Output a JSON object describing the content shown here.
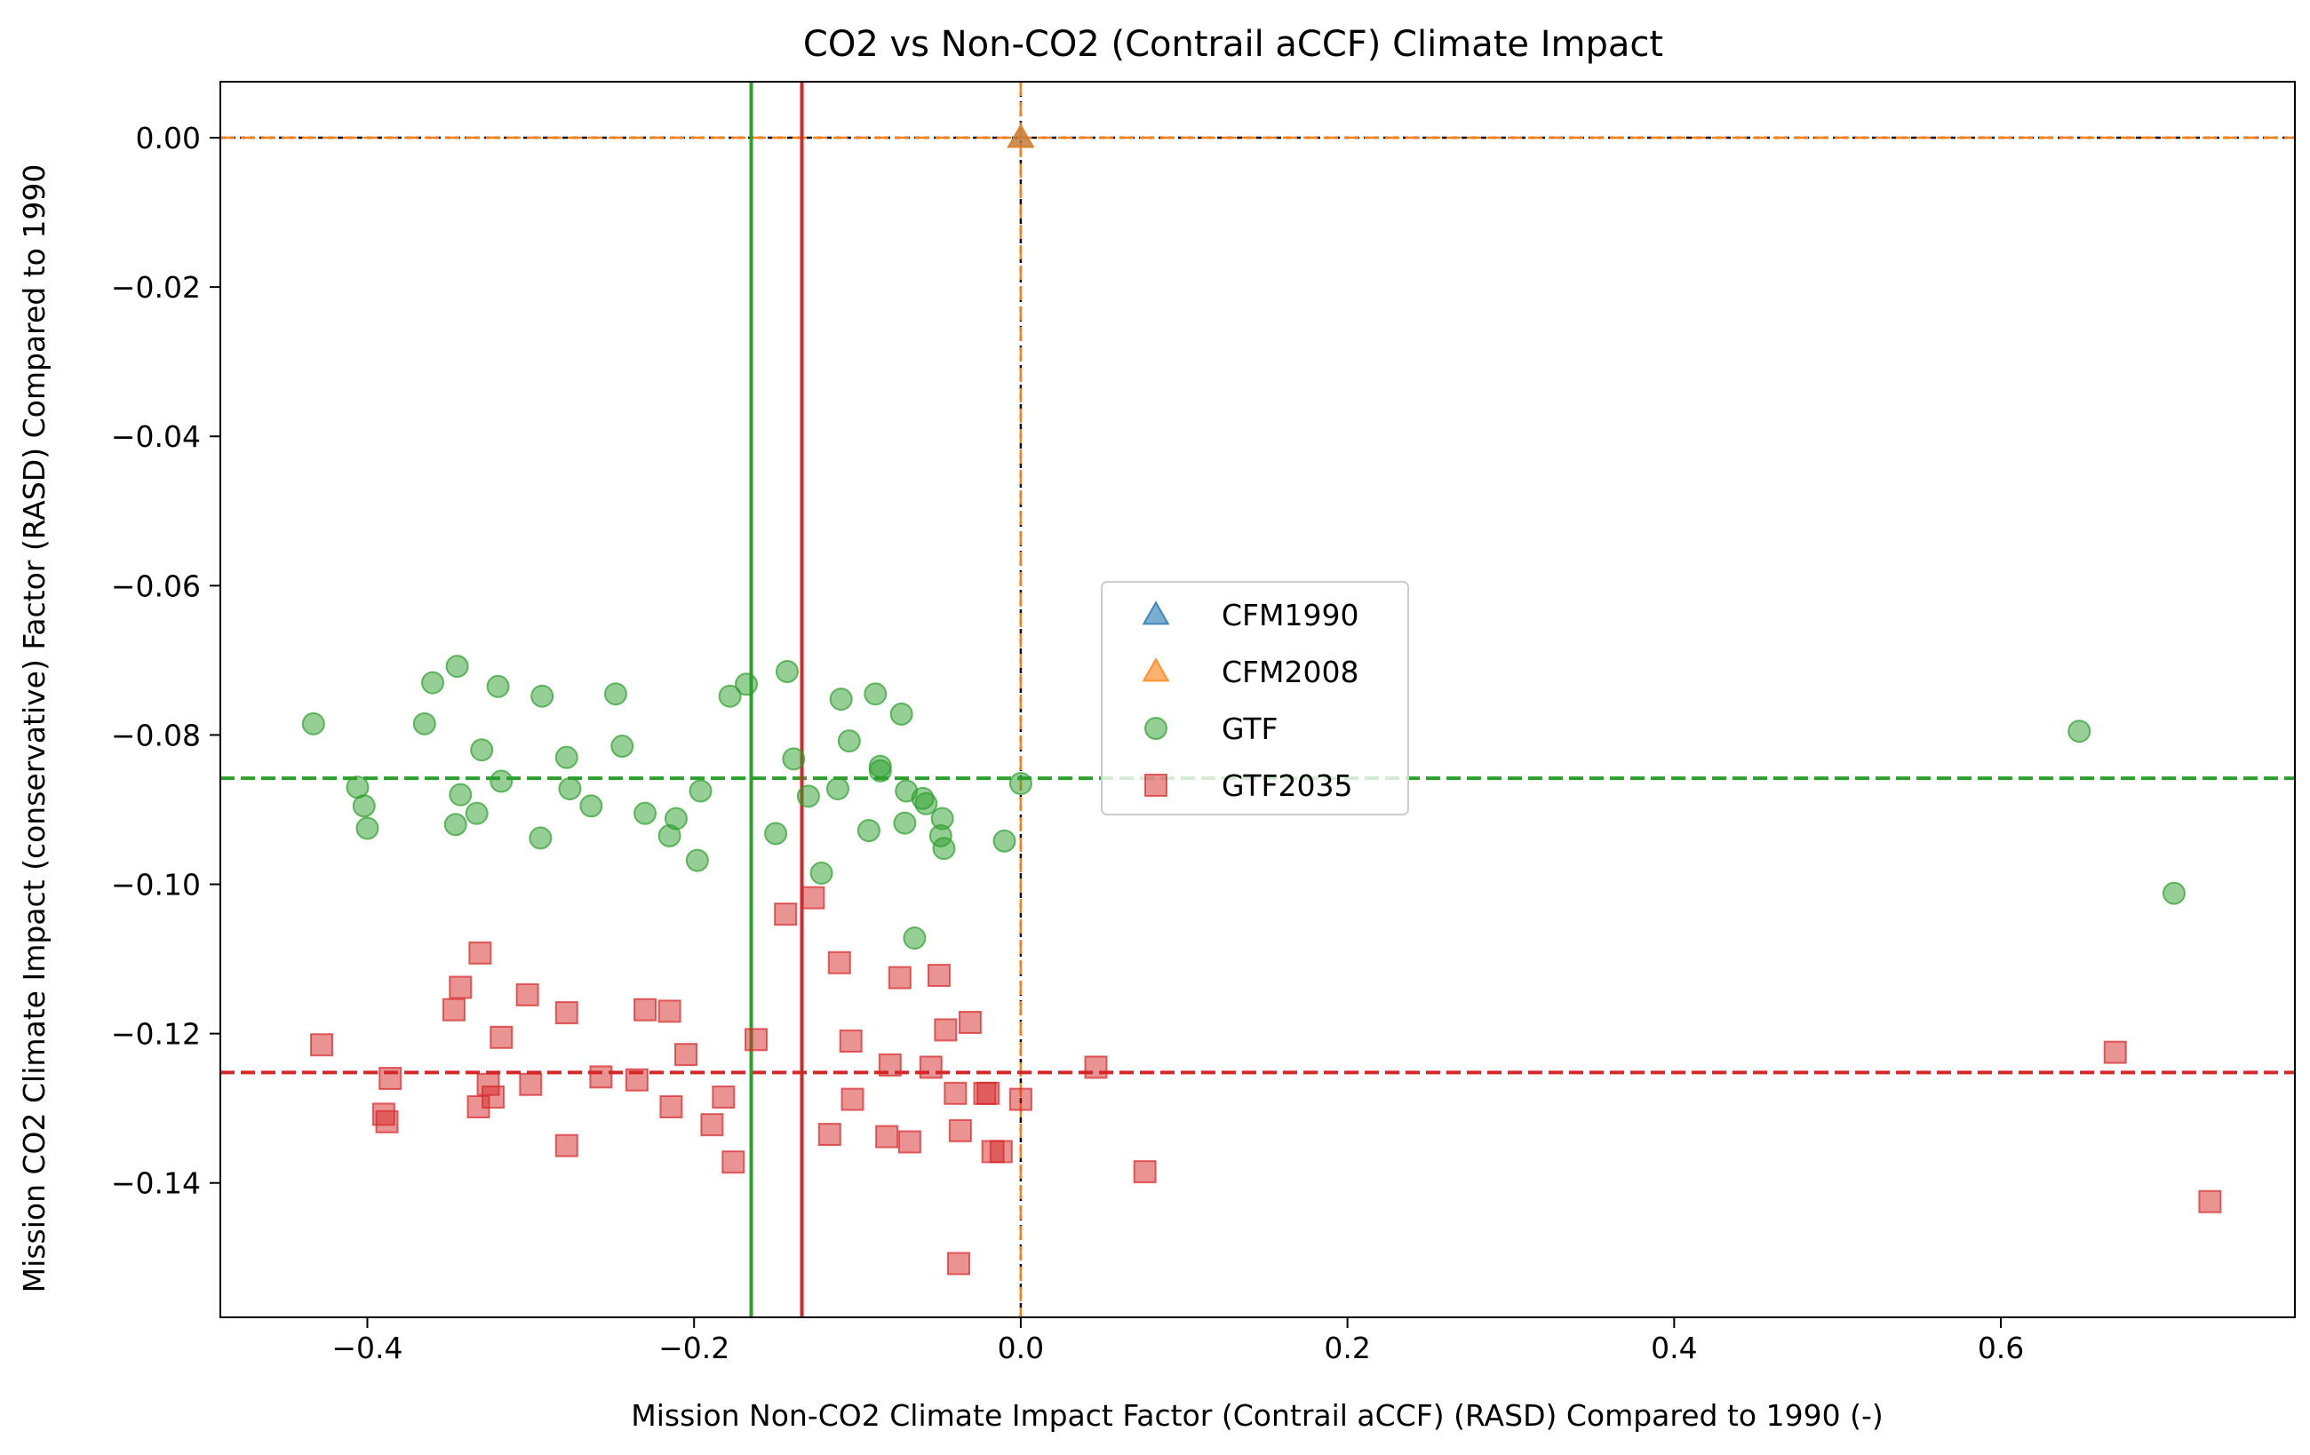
{
  "chart_data": {
    "type": "scatter",
    "title": "CO2 vs Non-CO2 (Contrail aCCF) Climate Impact",
    "xlabel": "Mission Non-CO2 Climate Impact Factor (Contrail aCCF) (RASD) Compared to 1990 (-)",
    "ylabel": "Mission CO2 Climate Impact (conservative) Factor (RASD) Compared to 1990",
    "xlim": [
      -0.49,
      0.78
    ],
    "ylim": [
      -0.158,
      0.0075
    ],
    "xticks": [
      -0.4,
      -0.2,
      0.0,
      0.2,
      0.4,
      0.6
    ],
    "xtick_labels": [
      "−0.4",
      "−0.2",
      "0.0",
      "0.2",
      "0.4",
      "0.6"
    ],
    "yticks": [
      0.0,
      -0.02,
      -0.04,
      -0.06,
      -0.08,
      -0.1,
      -0.12,
      -0.14
    ],
    "ytick_labels": [
      "0.00",
      "−0.02",
      "−0.04",
      "−0.06",
      "−0.08",
      "−0.10",
      "−0.12",
      "−0.14"
    ],
    "grid": false,
    "legend_position": "center",
    "series": [
      {
        "name": "CFM1990",
        "marker": "triangle",
        "color": "#1f77b4",
        "points": [
          [
            0.0,
            0.0
          ]
        ]
      },
      {
        "name": "CFM2008",
        "marker": "triangle",
        "color": "#ff7f0e",
        "points": [
          [
            0.0,
            0.0
          ]
        ]
      },
      {
        "name": "GTF",
        "marker": "circle",
        "color": "#2ca02c",
        "points": [
          [
            -0.433,
            -0.0785
          ],
          [
            -0.406,
            -0.087
          ],
          [
            -0.402,
            -0.0895
          ],
          [
            -0.4,
            -0.0925
          ],
          [
            -0.365,
            -0.0785
          ],
          [
            -0.36,
            -0.073
          ],
          [
            -0.345,
            -0.0708
          ],
          [
            -0.346,
            -0.092
          ],
          [
            -0.343,
            -0.088
          ],
          [
            -0.333,
            -0.0905
          ],
          [
            -0.33,
            -0.082
          ],
          [
            -0.32,
            -0.0735
          ],
          [
            -0.318,
            -0.0862
          ],
          [
            -0.293,
            -0.0748
          ],
          [
            -0.294,
            -0.0938
          ],
          [
            -0.278,
            -0.083
          ],
          [
            -0.276,
            -0.0872
          ],
          [
            -0.263,
            -0.0895
          ],
          [
            -0.248,
            -0.0745
          ],
          [
            -0.244,
            -0.0815
          ],
          [
            -0.23,
            -0.0905
          ],
          [
            -0.215,
            -0.0935
          ],
          [
            -0.211,
            -0.0912
          ],
          [
            -0.198,
            -0.0968
          ],
          [
            -0.196,
            -0.0875
          ],
          [
            -0.178,
            -0.0748
          ],
          [
            -0.168,
            -0.0732
          ],
          [
            -0.15,
            -0.0932
          ],
          [
            -0.143,
            -0.0715
          ],
          [
            -0.139,
            -0.0832
          ],
          [
            -0.13,
            -0.0882
          ],
          [
            -0.122,
            -0.0985
          ],
          [
            -0.112,
            -0.0872
          ],
          [
            -0.11,
            -0.0752
          ],
          [
            -0.105,
            -0.0808
          ],
          [
            -0.093,
            -0.0928
          ],
          [
            -0.089,
            -0.0745
          ],
          [
            -0.086,
            -0.0842
          ],
          [
            -0.086,
            -0.0848
          ],
          [
            -0.073,
            -0.0772
          ],
          [
            -0.071,
            -0.0918
          ],
          [
            -0.07,
            -0.0875
          ],
          [
            -0.065,
            -0.1072
          ],
          [
            -0.06,
            -0.0885
          ],
          [
            -0.058,
            -0.0892
          ],
          [
            -0.048,
            -0.0912
          ],
          [
            -0.047,
            -0.0952
          ],
          [
            -0.049,
            -0.0935
          ],
          [
            -0.01,
            -0.0942
          ],
          [
            0.0,
            -0.0865
          ],
          [
            0.648,
            -0.0795
          ],
          [
            0.706,
            -0.1012
          ]
        ]
      },
      {
        "name": "GTF2035",
        "marker": "square",
        "color": "#d62728",
        "points": [
          [
            -0.428,
            -0.1215
          ],
          [
            -0.39,
            -0.1308
          ],
          [
            -0.388,
            -0.1318
          ],
          [
            -0.386,
            -0.126
          ],
          [
            -0.347,
            -0.1168
          ],
          [
            -0.343,
            -0.1138
          ],
          [
            -0.331,
            -0.1092
          ],
          [
            -0.332,
            -0.1298
          ],
          [
            -0.326,
            -0.1268
          ],
          [
            -0.323,
            -0.1285
          ],
          [
            -0.318,
            -0.1205
          ],
          [
            -0.302,
            -0.1148
          ],
          [
            -0.3,
            -0.1268
          ],
          [
            -0.278,
            -0.1172
          ],
          [
            -0.278,
            -0.135
          ],
          [
            -0.257,
            -0.1258
          ],
          [
            -0.235,
            -0.1262
          ],
          [
            -0.23,
            -0.1168
          ],
          [
            -0.215,
            -0.117
          ],
          [
            -0.214,
            -0.1298
          ],
          [
            -0.205,
            -0.1228
          ],
          [
            -0.189,
            -0.1322
          ],
          [
            -0.182,
            -0.1285
          ],
          [
            -0.176,
            -0.1372
          ],
          [
            -0.162,
            -0.1208
          ],
          [
            -0.144,
            -0.104
          ],
          [
            -0.127,
            -0.1018
          ],
          [
            -0.117,
            -0.1335
          ],
          [
            -0.111,
            -0.1105
          ],
          [
            -0.103,
            -0.1288
          ],
          [
            -0.104,
            -0.121
          ],
          [
            -0.082,
            -0.1338
          ],
          [
            -0.08,
            -0.1242
          ],
          [
            -0.074,
            -0.1125
          ],
          [
            -0.068,
            -0.1345
          ],
          [
            -0.055,
            -0.1245
          ],
          [
            -0.05,
            -0.1122
          ],
          [
            -0.046,
            -0.1195
          ],
          [
            -0.04,
            -0.128
          ],
          [
            -0.038,
            -0.1508
          ],
          [
            -0.037,
            -0.133
          ],
          [
            -0.031,
            -0.1185
          ],
          [
            -0.022,
            -0.128
          ],
          [
            -0.02,
            -0.128
          ],
          [
            -0.017,
            -0.1358
          ],
          [
            -0.012,
            -0.1358
          ],
          [
            0.0,
            -0.1288
          ],
          [
            0.046,
            -0.1245
          ],
          [
            0.076,
            -0.1385
          ],
          [
            0.67,
            -0.1225
          ],
          [
            0.728,
            -0.1425
          ]
        ]
      }
    ],
    "reference_lines": [
      {
        "orientation": "horizontal",
        "value": 0.0,
        "color": "#000000",
        "style": "dashed"
      },
      {
        "orientation": "horizontal",
        "value": 0.0,
        "color": "#ff7f0e",
        "style": "dashed"
      },
      {
        "orientation": "vertical",
        "value": 0.0,
        "color": "#000000",
        "style": "dashed"
      },
      {
        "orientation": "vertical",
        "value": 0.0,
        "color": "#ff7f0e",
        "style": "dashed"
      },
      {
        "orientation": "horizontal",
        "value": -0.0858,
        "color": "#2ca02c",
        "style": "dashed"
      },
      {
        "orientation": "horizontal",
        "value": -0.1252,
        "color": "#d62728",
        "style": "dashed"
      },
      {
        "orientation": "vertical",
        "value": -0.165,
        "color": "#2ca02c",
        "style": "solid"
      },
      {
        "orientation": "vertical",
        "value": -0.134,
        "color": "#d62728",
        "style": "solid"
      }
    ]
  }
}
